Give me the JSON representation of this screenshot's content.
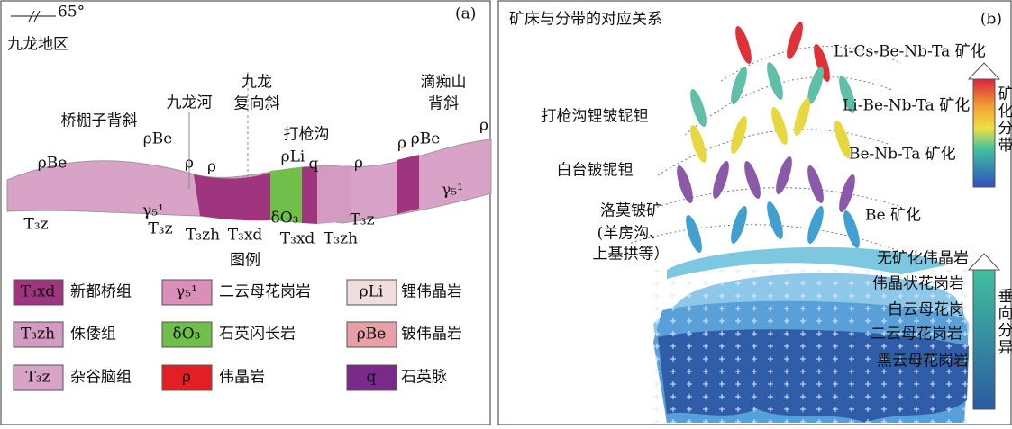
{
  "panel_a": {
    "strike": "65°",
    "label": "(a)",
    "region": "九龙地区",
    "structures": [
      "桥棚子背斜",
      "九龙河",
      "九龙",
      "复向斜",
      "打枪沟",
      "滴痴山",
      "背斜"
    ],
    "rock_labels": [
      "ρBe",
      "ρBe",
      "ρ",
      "ρ",
      "ρLi",
      "q",
      "ρ",
      "ρ",
      "ρBe",
      "ρ",
      "γ₅¹",
      "γ₅¹",
      "T₃z",
      "T₃z",
      "T₃zh",
      "T₃xd",
      "δO₃",
      "T₃xd",
      "T₃zh",
      "T₃z"
    ],
    "legend_title": "图例",
    "legend": [
      {
        "symbol": "T₃xd",
        "name": "新都桥组"
      },
      {
        "symbol": "γ₅¹",
        "name": "二云母花岗岩"
      },
      {
        "symbol": "ρLi",
        "name": "锂伟晶岩"
      },
      {
        "symbol": "T₃zh",
        "name": "侏倭组"
      },
      {
        "symbol": "δO₃",
        "name": "石英闪长岩"
      },
      {
        "symbol": "ρBe",
        "name": "铍伟晶岩"
      },
      {
        "symbol": "T₃z",
        "name": "杂谷脑组"
      },
      {
        "symbol": "ρ",
        "name": "伟晶岩"
      },
      {
        "symbol": "q",
        "name": "石英脉"
      }
    ]
  },
  "panel_b": {
    "title": "矿床与分带的对应关系",
    "label": "(b)",
    "zones": [
      "Li-Cs-Be-Nb-Ta 矿化",
      "Li-Be-Nb-Ta 矿化",
      "Be-Nb-Ta 矿化",
      "Be 矿化"
    ],
    "deposits": [
      "打枪沟锂铍铌钽",
      "白台铍铌钽",
      "洛莫铍矿",
      "(羊房沟、",
      "上基拱等）"
    ],
    "rocks": [
      "无矿化伟晶岩",
      "伟晶状花岗岩",
      "白云母花岗",
      "二云母花岗岩",
      "黑云母花岗岩"
    ],
    "arrow_top": "矿化分带",
    "arrow_bottom": "垂向分异"
  }
}
